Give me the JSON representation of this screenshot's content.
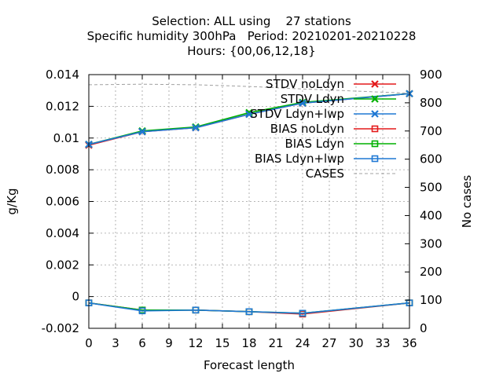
{
  "chart_data": {
    "type": "line",
    "title_lines": [
      "Selection: ALL using    27 stations",
      "Specific humidity 300hPa   Period: 20210201-20210228",
      "Hours: {00,06,12,18}"
    ],
    "xlabel": "Forecast length",
    "ylabel": "g/Kg",
    "y2label": "No cases",
    "xlim": [
      0,
      36
    ],
    "ylim": [
      -0.002,
      0.014
    ],
    "y2lim": [
      0,
      900
    ],
    "xticks": [
      0,
      3,
      6,
      9,
      12,
      15,
      18,
      21,
      24,
      27,
      30,
      33,
      36
    ],
    "yticks": [
      -0.002,
      0,
      0.002,
      0.004,
      0.006,
      0.008,
      0.01,
      0.012,
      0.014
    ],
    "yticklabels": [
      "-0.002",
      "0",
      "0.002",
      "0.004",
      "0.006",
      "0.008",
      "0.01",
      "0.012",
      "0.014"
    ],
    "y2ticks": [
      0,
      100,
      200,
      300,
      400,
      500,
      600,
      700,
      800,
      900
    ],
    "grid": true,
    "legend_position": "top-right",
    "x": [
      0,
      6,
      12,
      18,
      24,
      36
    ],
    "series": [
      {
        "name": "STDV noLdyn",
        "axis": "y",
        "color": "#e41a1c",
        "marker": "x",
        "values": [
          0.00955,
          0.0104,
          0.01065,
          0.0115,
          0.0122,
          0.0128
        ]
      },
      {
        "name": "STDV Ldyn",
        "axis": "y",
        "color": "#00b000",
        "marker": "x",
        "values": [
          0.0096,
          0.01045,
          0.0107,
          0.0116,
          0.01225,
          0.0128
        ]
      },
      {
        "name": "STDV Ldyn+lwp",
        "axis": "y",
        "color": "#1f78d4",
        "marker": "x",
        "values": [
          0.0096,
          0.0104,
          0.01065,
          0.0115,
          0.0122,
          0.0128
        ]
      },
      {
        "name": "BIAS noLdyn",
        "axis": "y",
        "color": "#e41a1c",
        "marker": "square",
        "values": [
          -0.0004,
          -0.00085,
          -0.00085,
          -0.00095,
          -0.0011,
          -0.0004
        ]
      },
      {
        "name": "BIAS Ldyn",
        "axis": "y",
        "color": "#00b000",
        "marker": "square",
        "values": [
          -0.0004,
          -0.00085,
          -0.00085,
          -0.00095,
          -0.00105,
          -0.0004
        ]
      },
      {
        "name": "BIAS Ldyn+lwp",
        "axis": "y",
        "color": "#1f78d4",
        "marker": "square",
        "values": [
          -0.0004,
          -0.0009,
          -0.00085,
          -0.00095,
          -0.00105,
          -0.0004
        ]
      },
      {
        "name": "CASES",
        "axis": "y2",
        "color": "#a0a0a0",
        "marker": "none",
        "dashed": true,
        "values": [
          864,
          866,
          864,
          858,
          849,
          834
        ]
      }
    ]
  }
}
